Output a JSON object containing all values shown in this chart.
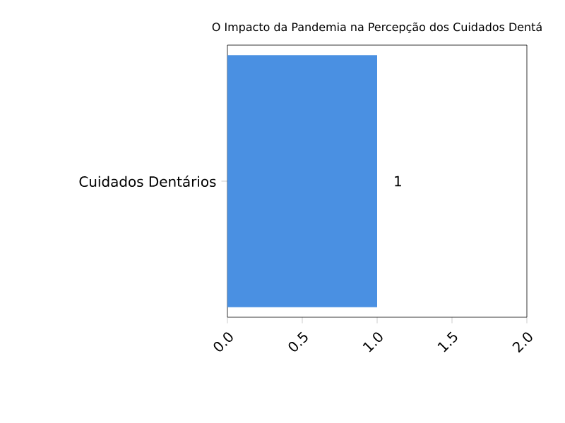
{
  "chart_data": {
    "type": "bar",
    "orientation": "horizontal",
    "title": "O Impacto da Pandemia na Percepção dos Cuidados Dentá",
    "categories": [
      "Cuidados Dentários"
    ],
    "values": [
      1
    ],
    "color": "#4a90e2",
    "data_labels": true,
    "xlim": [
      0,
      2
    ],
    "xticks": [
      {
        "value": 0,
        "label": "0.0"
      },
      {
        "value": 0.5,
        "label": "0.5"
      },
      {
        "value": 1,
        "label": "1.0"
      },
      {
        "value": 1.5,
        "label": "1.5"
      },
      {
        "value": 2,
        "label": "2.0"
      }
    ]
  }
}
